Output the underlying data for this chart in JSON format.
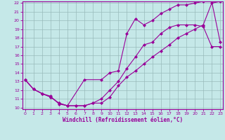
{
  "xlabel": "Windchill (Refroidissement éolien,°C)",
  "bg_color": "#c5e8e8",
  "grid_color": "#99bbbb",
  "line_color": "#990099",
  "marker": "D",
  "markersize": 2,
  "linewidth": 0.8,
  "xlim": [
    0,
    23
  ],
  "ylim": [
    10,
    22
  ],
  "xticks": [
    0,
    1,
    2,
    3,
    4,
    5,
    6,
    7,
    8,
    9,
    10,
    11,
    12,
    13,
    14,
    15,
    16,
    17,
    18,
    19,
    20,
    21,
    22,
    23
  ],
  "yticks": [
    10,
    11,
    12,
    13,
    14,
    15,
    16,
    17,
    18,
    19,
    20,
    21,
    22
  ],
  "line1_x": [
    0,
    1,
    2,
    3,
    4,
    5,
    6,
    7,
    8,
    9,
    10,
    11,
    12,
    13,
    14,
    15,
    16,
    17,
    18,
    19,
    20,
    21,
    22,
    23
  ],
  "line1_y": [
    13.2,
    12.1,
    11.6,
    11.2,
    10.5,
    10.2,
    10.2,
    10.2,
    10.5,
    10.5,
    11.2,
    12.5,
    13.5,
    14.2,
    15.0,
    15.8,
    16.5,
    17.2,
    18.0,
    18.5,
    19.0,
    19.5,
    22.0,
    22.2
  ],
  "line2_x": [
    0,
    1,
    2,
    3,
    4,
    5,
    6,
    7,
    8,
    9,
    10,
    11,
    12,
    13,
    14,
    15,
    16,
    17,
    18,
    19,
    20,
    21,
    22,
    23
  ],
  "line2_y": [
    13.2,
    12.1,
    11.6,
    11.2,
    10.5,
    10.2,
    10.2,
    10.2,
    10.5,
    11.0,
    12.0,
    13.0,
    14.5,
    15.8,
    17.2,
    17.5,
    18.5,
    19.2,
    19.5,
    19.5,
    19.5,
    19.3,
    17.0,
    17.0
  ],
  "line3_x": [
    0,
    1,
    2,
    3,
    4,
    5,
    7,
    9,
    10,
    11,
    12,
    13,
    14,
    15,
    16,
    17,
    18,
    19,
    20,
    21,
    22,
    23
  ],
  "line3_y": [
    13.2,
    12.1,
    11.6,
    11.3,
    10.4,
    10.2,
    13.2,
    13.2,
    14.0,
    14.2,
    18.5,
    20.2,
    19.5,
    20.0,
    20.8,
    21.3,
    21.8,
    21.8,
    22.0,
    22.2,
    22.2,
    17.5
  ]
}
